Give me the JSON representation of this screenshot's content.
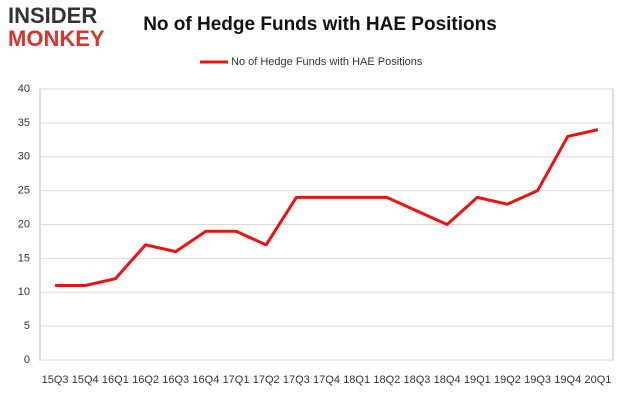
{
  "chart_data": {
    "type": "line",
    "title": "No of Hedge Funds with HAE Positions",
    "logo": [
      "INSIDER",
      "MONKEY"
    ],
    "categories": [
      "15Q3",
      "15Q4",
      "16Q1",
      "16Q2",
      "16Q3",
      "16Q4",
      "17Q1",
      "17Q2",
      "17Q3",
      "17Q4",
      "18Q1",
      "18Q2",
      "18Q3",
      "18Q4",
      "19Q1",
      "19Q2",
      "19Q3",
      "19Q4",
      "20Q1"
    ],
    "series": [
      {
        "name": "No of Hedge Funds with HAE Positions",
        "color": "#ee1111",
        "values": [
          11,
          11,
          12,
          17,
          16,
          19,
          19,
          17,
          24,
          24,
          24,
          24,
          22,
          20,
          24,
          23,
          25,
          33,
          34
        ]
      }
    ],
    "ylim": [
      0,
      40
    ],
    "yticks": [
      0,
      5,
      10,
      15,
      20,
      25,
      30,
      35,
      40
    ],
    "grid": true,
    "legend": "top"
  }
}
